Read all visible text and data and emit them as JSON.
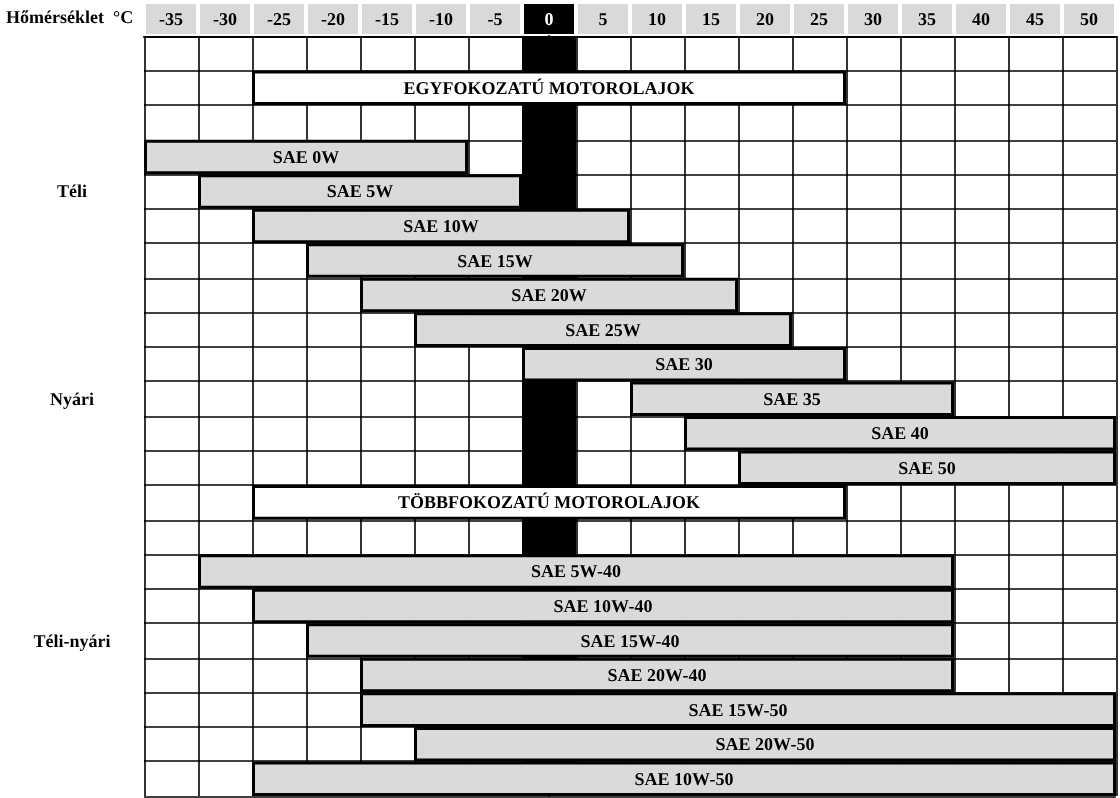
{
  "chart_data": {
    "type": "bar",
    "orientation": "horizontal",
    "xlabel": "Hőmérséklet  °C",
    "categories": [
      null,
      null,
      null,
      null,
      "Téli",
      null,
      null,
      null,
      null,
      null,
      "Nyári",
      null,
      null,
      null,
      null,
      null,
      null,
      "Téli-nyári",
      null,
      null,
      null,
      null
    ],
    "series": [
      {
        "color": "#ffffff",
        "base": [
          null,
          -27.5,
          null,
          null,
          null,
          null,
          null,
          null,
          null,
          null,
          null,
          null,
          null,
          -27.5,
          null,
          null,
          null,
          null,
          null,
          null,
          null,
          null
        ],
        "values": [
          null,
          55,
          null,
          null,
          null,
          null,
          null,
          null,
          null,
          null,
          null,
          null,
          null,
          55,
          null,
          null,
          null,
          null,
          null,
          null,
          null,
          null
        ],
        "value_labels": [
          null,
          "EGYFOKOZATÚ MOTOROLAJOK",
          null,
          null,
          null,
          null,
          null,
          null,
          null,
          null,
          null,
          null,
          null,
          "TÖBBFOKOZATÚ MOTOROLAJOK",
          null,
          null,
          null,
          null,
          null,
          null,
          null,
          null
        ]
      },
      {
        "color": "#dcd9dc",
        "base": [
          null,
          null,
          null,
          -37.5,
          -32.5,
          -27.5,
          -22.5,
          -17.5,
          -12.5,
          -2.5,
          7.5,
          12.5,
          17.5,
          null,
          null,
          -32.5,
          -27.5,
          -22.5,
          -17.5,
          -17.5,
          -12.5,
          -27.5
        ],
        "values": [
          null,
          null,
          null,
          30,
          30,
          35,
          35,
          35,
          35,
          30,
          30,
          40,
          35,
          null,
          null,
          70,
          65,
          60,
          55,
          70,
          65,
          80
        ],
        "value_labels": [
          null,
          null,
          null,
          "SAE 0W",
          "SAE 5W",
          "SAE 10W",
          "SAE 15W",
          "SAE 20W",
          "SAE 25W",
          "SAE 30",
          "SAE 35",
          "SAE 40",
          "SAE 50",
          null,
          null,
          "SAE 5W-40",
          "SAE 10W-40",
          "SAE 15W-40",
          "SAE 20W-40",
          "SAE 15W-50",
          "SAE 20W-50",
          "SAE 10W-50"
        ]
      }
    ],
    "xlim": [
      -37.5,
      52.5
    ],
    "xticks": [
      -35,
      -30,
      -25,
      -20,
      -15,
      -10,
      -5,
      0,
      5,
      10,
      15,
      20,
      25,
      30,
      35,
      40,
      45,
      50
    ],
    "bands": [
      {
        "axis": "x",
        "from": -2.5,
        "to": 2.5,
        "color": "#000000"
      }
    ],
    "grid": true
  }
}
